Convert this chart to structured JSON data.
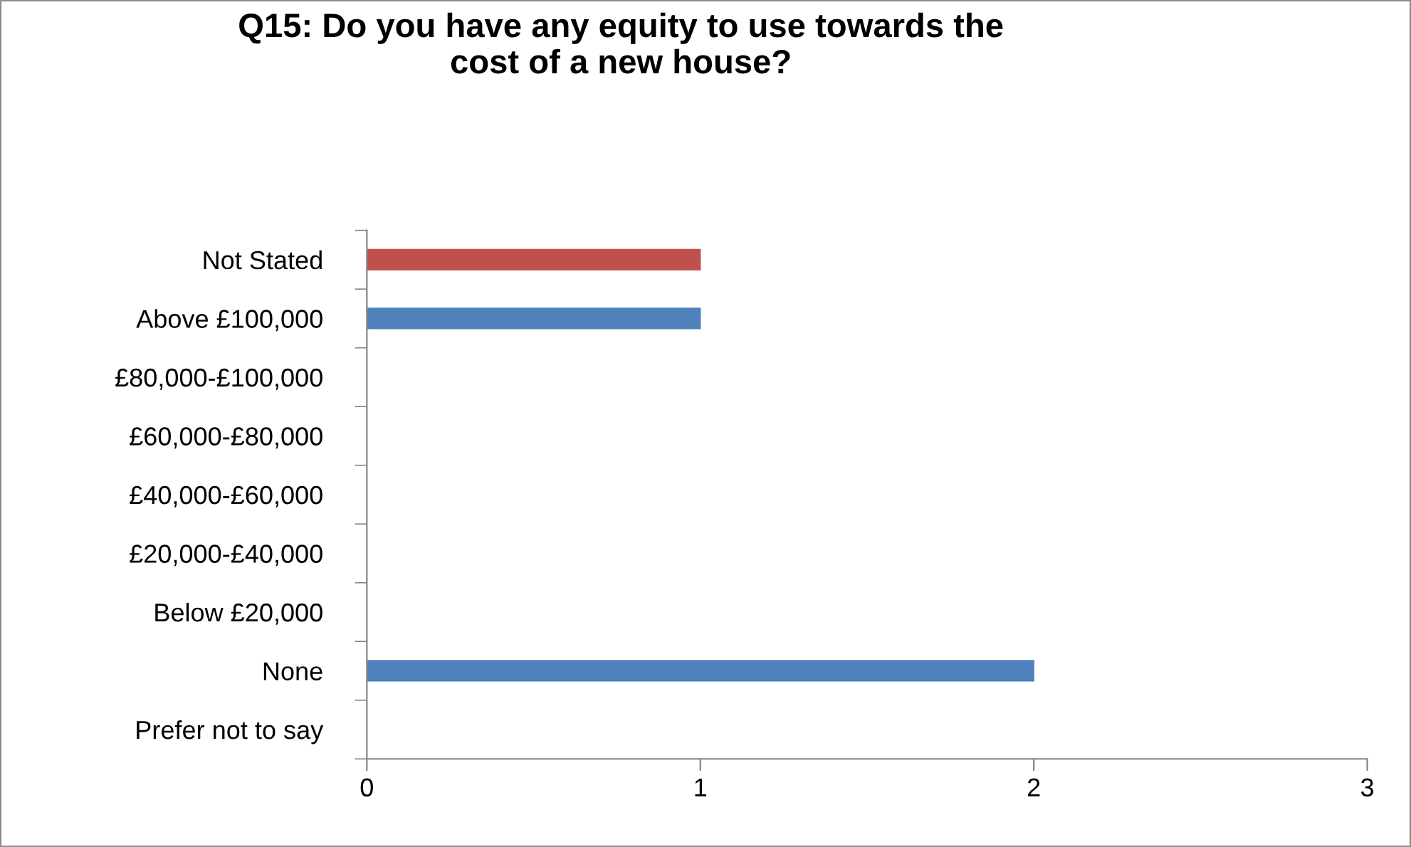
{
  "chart_data": {
    "type": "bar",
    "orientation": "horizontal",
    "title": "Q15: Do you have any equity to use towards the\ncost of a new house?",
    "categories": [
      "Not Stated",
      "Above £100,000",
      "£80,000-£100,000",
      "£60,000-£80,000",
      "£40,000-£60,000",
      "£20,000-£40,000",
      "Below £20,000",
      "None",
      "Prefer not to say"
    ],
    "values": [
      1,
      1,
      0,
      0,
      0,
      0,
      0,
      2,
      0
    ],
    "colors": [
      "#c0504d",
      "#4f81bd",
      "#4f81bd",
      "#4f81bd",
      "#4f81bd",
      "#4f81bd",
      "#4f81bd",
      "#4f81bd",
      "#4f81bd"
    ],
    "xlim": [
      0,
      3
    ],
    "xticks": [
      0,
      1,
      2,
      3
    ],
    "grid": false,
    "legend": false
  }
}
